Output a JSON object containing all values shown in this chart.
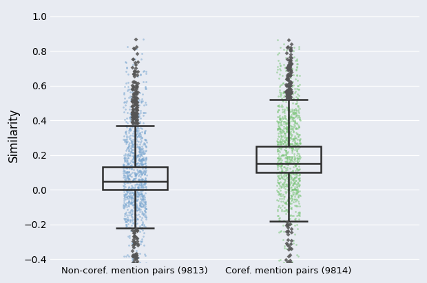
{
  "group1_label": "Non-coref. mention pairs (9813)",
  "group2_label": "Coref. mention pairs (9814)",
  "group1_n": 9813,
  "group2_n": 9814,
  "group1_stats": {
    "median": 0.05,
    "q1": 0.0,
    "q3": 0.13,
    "whisker_low": -0.22,
    "whisker_high": 0.37
  },
  "group2_stats": {
    "median": 0.15,
    "q1": 0.1,
    "q3": 0.25,
    "whisker_low": -0.18,
    "whisker_high": 0.52
  },
  "color1": "#7BA7D0",
  "color2": "#7DC57B",
  "box_color": "#2d2d2d",
  "flier_color": "#555555",
  "background_color": "#E8EBF2",
  "ylabel": "Similarity",
  "ylim": [
    -0.42,
    1.05
  ],
  "yticks": [
    -0.4,
    -0.2,
    0.0,
    0.2,
    0.4,
    0.6,
    0.8,
    1.0
  ],
  "strip_alpha": 0.55,
  "strip_size": 4.0,
  "strip_jitter": 0.075,
  "seed": 42,
  "n_strip": 800,
  "n_outliers_high1": 120,
  "n_outliers_low1": 60,
  "n_outliers_high2": 100,
  "n_outliers_low2": 30
}
